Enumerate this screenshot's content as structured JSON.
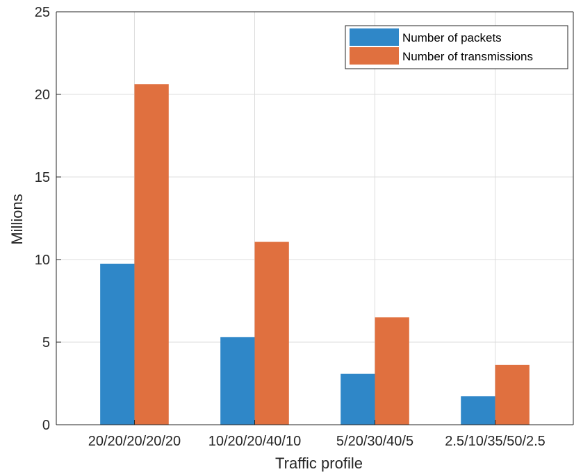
{
  "chart_data": {
    "type": "bar",
    "categories": [
      "20/20/20/20/20",
      "10/20/20/40/10",
      "5/20/30/40/5",
      "2.5/10/35/50/2.5"
    ],
    "series": [
      {
        "name": "Number of packets",
        "values": [
          9.75,
          5.3,
          3.08,
          1.72
        ],
        "color": "#2f87c8"
      },
      {
        "name": "Number of transmissions",
        "values": [
          20.62,
          11.07,
          6.5,
          3.62
        ],
        "color": "#e0703f"
      }
    ],
    "title": "",
    "xlabel": "Traffic profile",
    "ylabel": "Millions",
    "ylim": [
      0,
      25
    ],
    "yticks": [
      "0",
      "5",
      "10",
      "15",
      "20",
      "25"
    ],
    "grid": true,
    "legend_position": "top-right"
  }
}
